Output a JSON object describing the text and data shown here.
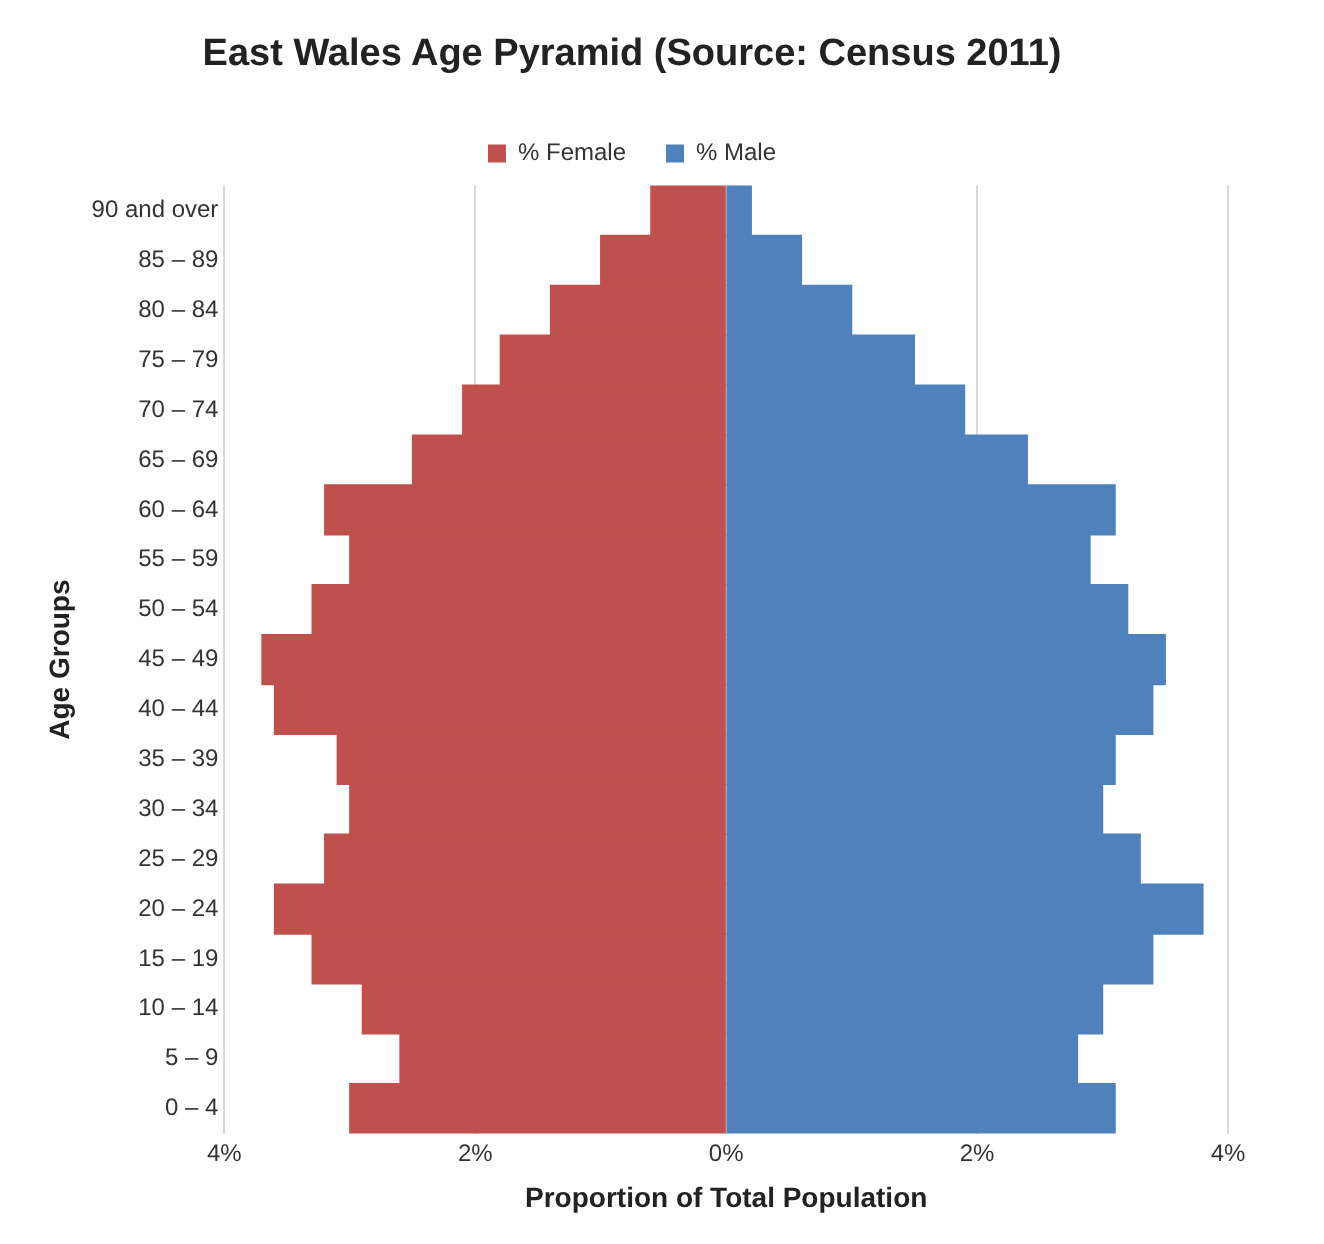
{
  "chart_data": {
    "type": "bar",
    "orientation": "horizontal",
    "stacked": true,
    "title": "East Wales Age Pyramid (Source: Census 2011)",
    "xlabel": "Proportion of Total Population",
    "ylabel": "Age Groups",
    "categories": [
      "90 and over",
      "85 – 89",
      "80 – 84",
      "75 – 79",
      "70 – 74",
      "65 – 69",
      "60 – 64",
      "55 – 59",
      "50 – 54",
      "45 – 49",
      "40 – 44",
      "35 – 39",
      "30 – 34",
      "25 – 29",
      "20 – 24",
      "15 – 19",
      "10 – 14",
      "5 – 9",
      "0 – 4"
    ],
    "series": [
      {
        "name": "% Female",
        "color": "#c0504d",
        "values": [
          -0.6,
          -1.0,
          -1.4,
          -1.8,
          -2.1,
          -2.5,
          -3.2,
          -3.0,
          -3.3,
          -3.7,
          -3.6,
          -3.1,
          -3.0,
          -3.2,
          -3.6,
          -3.3,
          -2.9,
          -2.6,
          -3.0
        ]
      },
      {
        "name": "% Male",
        "color": "#4f81bd",
        "values": [
          0.2,
          0.6,
          1.0,
          1.5,
          1.9,
          2.4,
          3.1,
          2.9,
          3.2,
          3.5,
          3.4,
          3.1,
          3.0,
          3.3,
          3.8,
          3.4,
          3.0,
          2.8,
          3.1
        ]
      }
    ],
    "xlim": [
      -4,
      4
    ],
    "xticks": [
      {
        "value": -4,
        "label": "4%"
      },
      {
        "value": -2,
        "label": "2%"
      },
      {
        "value": 0,
        "label": "0%"
      },
      {
        "value": 2,
        "label": "2%"
      },
      {
        "value": 4,
        "label": "4%"
      }
    ],
    "grid": "x",
    "legend": "top"
  }
}
